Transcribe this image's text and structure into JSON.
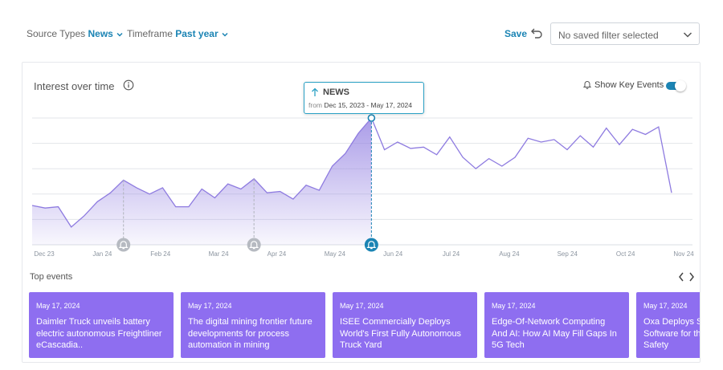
{
  "filters": {
    "source_label": "Source Types",
    "source_value": "News",
    "timeframe_label": "Timeframe",
    "timeframe_value": "Past year"
  },
  "save_label": "Save",
  "saved_filter_select": "No saved filter selected",
  "card": {
    "title": "Interest over time",
    "show_key_events_label": "Show Key Events",
    "show_key_events_on": true
  },
  "tooltip": {
    "title": "NEWS",
    "from_label": "from",
    "range": "Dec 15, 2023 - May 17, 2024"
  },
  "colors": {
    "accent": "#1b84b4",
    "line": "#8e7be0",
    "event_card": "#8e6ef0"
  },
  "chart_data": {
    "type": "area",
    "x_tick_labels": [
      "Dec 23",
      "Jan 24",
      "Feb 24",
      "Mar 24",
      "Apr 24",
      "May 24",
      "Jun 24",
      "Jul 24",
      "Aug 24",
      "Sep 24",
      "Oct 24",
      "Nov 24"
    ],
    "ylim": [
      0,
      100
    ],
    "grid": true,
    "values": [
      31,
      29,
      30,
      14,
      23,
      34,
      41,
      51,
      45,
      40,
      45,
      30,
      30,
      44,
      37,
      48,
      44,
      52,
      41,
      42,
      36,
      47,
      43,
      62,
      72,
      88,
      100,
      75,
      81,
      76,
      77,
      71,
      85,
      69,
      60,
      68,
      62,
      69,
      84,
      81,
      83,
      75,
      86,
      77,
      92,
      79,
      91,
      87,
      93,
      41
    ],
    "highlight_index": 26,
    "key_event_indices": [
      7,
      17,
      26
    ]
  },
  "top_events_label": "Top events",
  "events": [
    {
      "date": "May 17, 2024",
      "title": "Daimler Truck unveils battery electric autonomous Freightliner eCascadia.."
    },
    {
      "date": "May 17, 2024",
      "title": "The digital mining frontier future developments for process automation in mining"
    },
    {
      "date": "May 17, 2024",
      "title": "ISEE Commercially Deploys World's First Fully Autonomous Truck Yard"
    },
    {
      "date": "May 17, 2024",
      "title": "Edge-Of-Network Computing And AI: How AI May Fill Gaps In 5G Tech"
    },
    {
      "date": "May 17, 2024",
      "title": "Oxa Deploys Self-driving Software for the First Time as Safety"
    }
  ]
}
